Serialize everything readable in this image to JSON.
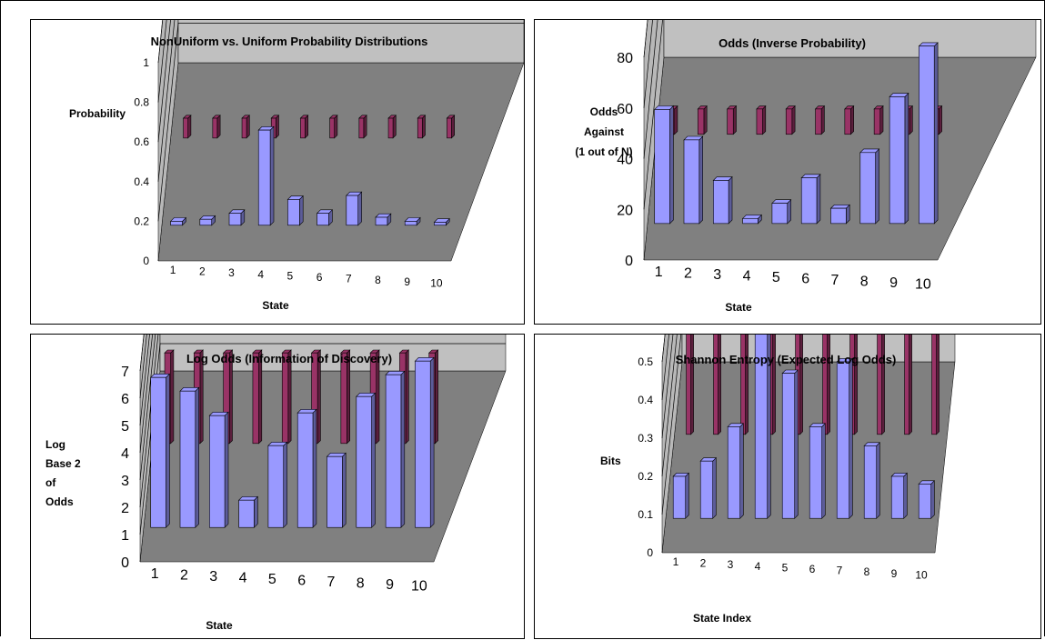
{
  "colors": {
    "series1": "#9999FF",
    "series2": "#993366",
    "wall": "#C0C0C0",
    "floor": "#808080"
  },
  "chart_data": [
    {
      "type": "bar",
      "title": "NonUniform vs. Uniform Probability Distributions",
      "ylabel": [
        "Probability"
      ],
      "xlabel": "State",
      "ylim": [
        0,
        1
      ],
      "yticks": [
        "0",
        "0.2",
        "0.4",
        "0.6",
        "0.8",
        "1"
      ],
      "categories": [
        "1",
        "2",
        "3",
        "4",
        "5",
        "6",
        "7",
        "8",
        "9",
        "10"
      ],
      "grid": true,
      "series": [
        {
          "values": [
            0.02,
            0.03,
            0.06,
            0.48,
            0.13,
            0.06,
            0.15,
            0.04,
            0.02,
            0.015
          ]
        },
        {
          "values": [
            0.1,
            0.1,
            0.1,
            0.1,
            0.1,
            0.1,
            0.1,
            0.1,
            0.1,
            0.1
          ]
        }
      ]
    },
    {
      "type": "bar",
      "title": "Odds (Inverse Probability)",
      "ylabel": [
        "Odds",
        "Against",
        "(1 out of N)"
      ],
      "xlabel": "State",
      "ylim": [
        0,
        80
      ],
      "yticks": [
        "0",
        "20",
        "40",
        "60",
        "80"
      ],
      "categories": [
        "1",
        "2",
        "3",
        "4",
        "5",
        "6",
        "7",
        "8",
        "9",
        "10"
      ],
      "grid": true,
      "series": [
        {
          "values": [
            45,
            33,
            17,
            2,
            8,
            18,
            6,
            28,
            50,
            70
          ]
        },
        {
          "values": [
            10,
            10,
            10,
            10,
            10,
            10,
            10,
            10,
            10,
            10
          ]
        }
      ]
    },
    {
      "type": "bar",
      "title": "Log Odds (Information of Discovery)",
      "ylabel": [
        "Log",
        "Base 2",
        "of",
        "Odds"
      ],
      "xlabel": "State",
      "ylim": [
        0,
        7
      ],
      "yticks": [
        "0",
        "1",
        "2",
        "3",
        "4",
        "5",
        "6",
        "7"
      ],
      "categories": [
        "1",
        "2",
        "3",
        "4",
        "5",
        "6",
        "7",
        "8",
        "9",
        "10"
      ],
      "grid": true,
      "series": [
        {
          "values": [
            5.5,
            5.0,
            4.1,
            1.0,
            3.0,
            4.2,
            2.6,
            4.8,
            5.6,
            6.1
          ]
        },
        {
          "values": [
            3.32,
            3.32,
            3.32,
            3.32,
            3.32,
            3.32,
            3.32,
            3.32,
            3.32,
            3.32
          ]
        }
      ]
    },
    {
      "type": "bar",
      "title": "Shannon Entropy (Expected Log Odds)",
      "ylabel": [
        "Bits"
      ],
      "xlabel": "State Index",
      "ylim": [
        0,
        0.5
      ],
      "yticks": [
        "0",
        "0.1",
        "0.2",
        "0.3",
        "0.4",
        "0.5"
      ],
      "categories": [
        "1",
        "2",
        "3",
        "4",
        "5",
        "6",
        "7",
        "8",
        "9",
        "10"
      ],
      "grid": true,
      "series": [
        {
          "values": [
            0.11,
            0.15,
            0.24,
            0.51,
            0.38,
            0.24,
            0.41,
            0.19,
            0.11,
            0.09
          ]
        },
        {
          "values": [
            0.33,
            0.33,
            0.33,
            0.33,
            0.33,
            0.33,
            0.33,
            0.33,
            0.33,
            0.33
          ]
        }
      ]
    }
  ]
}
